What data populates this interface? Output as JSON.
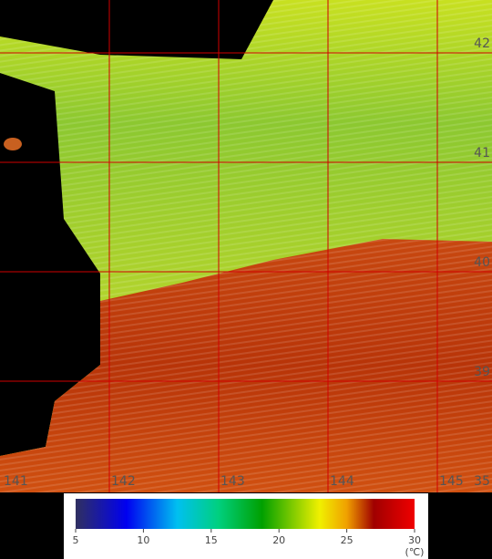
{
  "map": {
    "lat_labels": [
      42,
      41,
      40,
      39
    ],
    "lon_labels": [
      141,
      142,
      143,
      144,
      145
    ],
    "corner_label": "35",
    "colorbar": {
      "ticks": [
        5,
        10,
        15,
        20,
        25,
        30
      ],
      "unit": "(℃)"
    }
  }
}
